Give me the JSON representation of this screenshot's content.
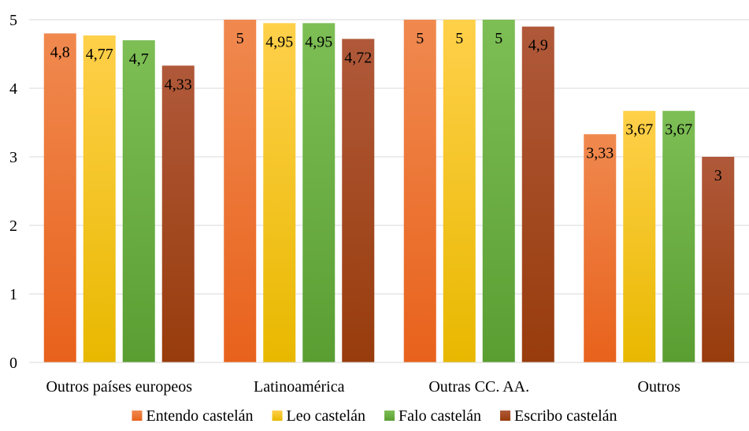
{
  "chart_data": {
    "type": "bar",
    "categories": [
      "Outros países europeos",
      "Latinoamérica",
      "Outras CC. AA.",
      "Outros"
    ],
    "series": [
      {
        "name": "Entendo castelán",
        "values": [
          4.8,
          5,
          5,
          3.33
        ],
        "labels": [
          "4,8",
          "5",
          "5",
          "3,33"
        ],
        "color_top": "#f0894f",
        "color_bottom": "#e8621c"
      },
      {
        "name": "Leo castelán",
        "values": [
          4.77,
          4.95,
          5,
          3.67
        ],
        "labels": [
          "4,77",
          "4,95",
          "5",
          "3,67"
        ],
        "color_top": "#ffd04a",
        "color_bottom": "#e8b800"
      },
      {
        "name": "Falo castelán",
        "values": [
          4.7,
          4.95,
          5,
          3.67
        ],
        "labels": [
          "4,7",
          "4,95",
          "5",
          "3,67"
        ],
        "color_top": "#7dbe55",
        "color_bottom": "#5a9e32"
      },
      {
        "name": "Escribo castelán",
        "values": [
          4.33,
          4.72,
          4.9,
          3
        ],
        "labels": [
          "4,33",
          "4,72",
          "4,9",
          "3"
        ],
        "color_top": "#b0593a",
        "color_bottom": "#983c0c"
      }
    ],
    "y_ticks": [
      "0",
      "1",
      "2",
      "3",
      "4",
      "5"
    ],
    "ylim": [
      0,
      5
    ],
    "grid": true,
    "legend_position": "bottom"
  }
}
